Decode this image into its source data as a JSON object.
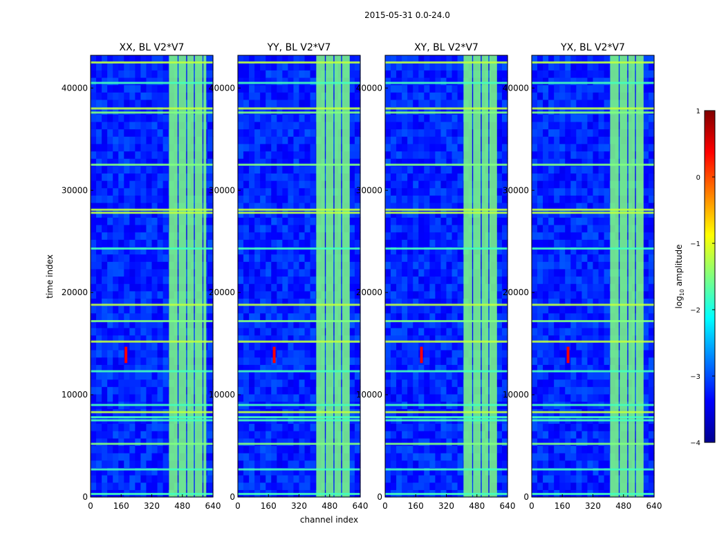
{
  "figure": {
    "suptitle": "2015-05-31 0.0-24.0",
    "xlabel": "channel index",
    "ylabel": "time index"
  },
  "colorbar": {
    "label_main": "log",
    "label_sub": "10",
    "label_tail": " amplitude",
    "colormap": "jet",
    "range": [
      -4,
      1
    ],
    "ticks": [
      {
        "value": 1,
        "label": "1"
      },
      {
        "value": 0,
        "label": "0"
      },
      {
        "value": -1,
        "label": "−1"
      },
      {
        "value": -2,
        "label": "−2"
      },
      {
        "value": -3,
        "label": "−3"
      },
      {
        "value": -4,
        "label": "−4"
      }
    ]
  },
  "chart_data": [
    {
      "type": "heatmap",
      "title": "XX, BL V2*V7",
      "xlabel": "channel index",
      "ylabel": "time index",
      "xlim": [
        0,
        640
      ],
      "ylim": [
        0,
        43200
      ],
      "xticks": [
        0,
        160,
        320,
        480,
        640
      ],
      "yticks": [
        0,
        10000,
        20000,
        30000,
        40000
      ],
      "value_units": "log10 amplitude",
      "range": [
        -4,
        1
      ],
      "background_level": -3.2,
      "rfi_channels": [
        [
          410,
          455
        ],
        [
          460,
          500
        ],
        [
          505,
          540
        ],
        [
          545,
          585
        ],
        [
          590,
          605
        ]
      ],
      "rfi_level": -1.5,
      "point_source": {
        "channel": 185,
        "time": 13900,
        "level": 0.4
      },
      "bright_rows": [
        300,
        2700,
        5200,
        7500,
        7800,
        8300,
        9000,
        12300,
        15200,
        17200,
        18800,
        24300,
        27800,
        28100,
        32500,
        37600,
        38000,
        40500,
        42500
      ]
    },
    {
      "type": "heatmap",
      "title": "YY, BL V2*V7",
      "xlabel": "channel index",
      "ylabel": "time index",
      "xlim": [
        0,
        640
      ],
      "ylim": [
        0,
        43200
      ],
      "xticks": [
        0,
        160,
        320,
        480,
        640
      ],
      "yticks": [
        0,
        10000,
        20000,
        30000,
        40000
      ],
      "value_units": "log10 amplitude",
      "range": [
        -4,
        1
      ],
      "background_level": -3.2,
      "rfi_channels": [
        [
          410,
          455
        ],
        [
          460,
          500
        ],
        [
          505,
          540
        ],
        [
          545,
          585
        ]
      ],
      "rfi_level": -1.5,
      "point_source": {
        "channel": 190,
        "time": 13900,
        "level": 0.4
      },
      "bright_rows": [
        300,
        2700,
        5200,
        7500,
        7800,
        8300,
        9000,
        12300,
        15200,
        17200,
        18800,
        24300,
        27800,
        28100,
        32500,
        37600,
        38000,
        40500,
        42500
      ]
    },
    {
      "type": "heatmap",
      "title": "XY, BL V2*V7",
      "xlabel": "channel index",
      "ylabel": "time index",
      "xlim": [
        0,
        640
      ],
      "ylim": [
        0,
        43200
      ],
      "xticks": [
        0,
        160,
        320,
        480,
        640
      ],
      "yticks": [
        0,
        10000,
        20000,
        30000,
        40000
      ],
      "value_units": "log10 amplitude",
      "range": [
        -4,
        1
      ],
      "background_level": -3.2,
      "rfi_channels": [
        [
          410,
          455
        ],
        [
          460,
          500
        ],
        [
          505,
          540
        ],
        [
          545,
          585
        ]
      ],
      "rfi_level": -1.5,
      "point_source": {
        "channel": 190,
        "time": 13900,
        "level": 0.4
      },
      "bright_rows": [
        300,
        2700,
        5200,
        7500,
        7800,
        8300,
        9000,
        12300,
        15200,
        17200,
        18800,
        24300,
        27800,
        28100,
        32500,
        37600,
        38000,
        40500,
        42500
      ]
    },
    {
      "type": "heatmap",
      "title": "YX, BL V2*V7",
      "xlabel": "channel index",
      "ylabel": "time index",
      "xlim": [
        0,
        640
      ],
      "ylim": [
        0,
        43200
      ],
      "xticks": [
        0,
        160,
        320,
        480,
        640
      ],
      "yticks": [
        0,
        10000,
        20000,
        30000,
        40000
      ],
      "value_units": "log10 amplitude",
      "range": [
        -4,
        1
      ],
      "background_level": -3.2,
      "rfi_channels": [
        [
          410,
          455
        ],
        [
          460,
          500
        ],
        [
          505,
          540
        ],
        [
          545,
          585
        ]
      ],
      "rfi_level": -1.5,
      "point_source": {
        "channel": 190,
        "time": 13900,
        "level": 0.4
      },
      "bright_rows": [
        300,
        2700,
        5200,
        7500,
        7800,
        8300,
        9000,
        12300,
        15200,
        17200,
        18800,
        24300,
        27800,
        28100,
        32500,
        37600,
        38000,
        40500,
        42500
      ]
    }
  ]
}
